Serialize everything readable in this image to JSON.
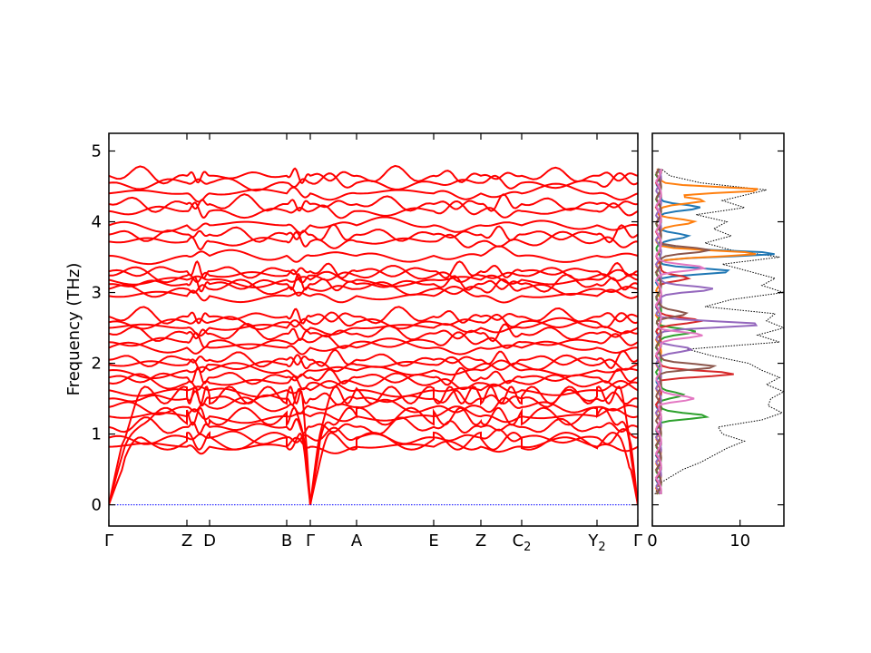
{
  "chart_data": [
    {
      "type": "line",
      "title": "",
      "xlabel": "",
      "ylabel": "Frequency (THz)",
      "ylim": [
        -0.3,
        5.25
      ],
      "yticks": [
        "0",
        "1",
        "2",
        "3",
        "4",
        "5"
      ],
      "ytick_values": [
        0,
        1,
        2,
        3,
        4,
        5
      ],
      "xticks": [
        {
          "label": "Γ",
          "sub": ""
        },
        {
          "label": "Z",
          "sub": ""
        },
        {
          "label": "D",
          "sub": ""
        },
        {
          "label": "B",
          "sub": ""
        },
        {
          "label": "Γ",
          "sub": ""
        },
        {
          "label": "A",
          "sub": ""
        },
        {
          "label": "E",
          "sub": ""
        },
        {
          "label": "Z",
          "sub": ""
        },
        {
          "label": "C",
          "sub": "2"
        },
        {
          "label": "Y",
          "sub": "2"
        },
        {
          "label": "Γ",
          "sub": ""
        }
      ],
      "band_color": "#ff0000",
      "zero_line_color": "#0000ff",
      "series_description": "phonon dispersion bands",
      "acoustic_max": [
        0.9,
        1.25,
        1.55
      ],
      "optical_levels": [
        0.82,
        0.95,
        1.1,
        1.25,
        1.38,
        1.5,
        1.62,
        1.72,
        1.8,
        1.9,
        1.98,
        2.05,
        2.22,
        2.3,
        2.42,
        2.5,
        2.58,
        2.66,
        2.95,
        3.05,
        3.12,
        3.18,
        3.24,
        3.3,
        3.52,
        3.72,
        3.82,
        3.95,
        4.15,
        4.25,
        4.4,
        4.55,
        4.65
      ]
    },
    {
      "type": "line",
      "title": "",
      "xlabel": "",
      "ylabel": "",
      "xlim": [
        0,
        15
      ],
      "xticks": [
        "0",
        "10"
      ],
      "xtick_values": [
        0,
        10
      ],
      "ylim": [
        -0.3,
        5.25
      ],
      "total_dos_color": "#000000",
      "series": [
        {
          "name": "",
          "color": "#1f77b4"
        },
        {
          "name": "",
          "color": "#ff7f0e"
        },
        {
          "name": "",
          "color": "#2ca02c"
        },
        {
          "name": "",
          "color": "#d62728"
        },
        {
          "name": "",
          "color": "#9467bd"
        },
        {
          "name": "",
          "color": "#8c564b"
        },
        {
          "name": "",
          "color": "#e377c2"
        }
      ],
      "total_dos": [
        [
          0.15,
          0.3
        ],
        [
          0.3,
          0.8
        ],
        [
          0.5,
          3.5
        ],
        [
          0.6,
          5.5
        ],
        [
          0.7,
          7.0
        ],
        [
          0.8,
          8.5
        ],
        [
          0.9,
          10.5
        ],
        [
          1.0,
          8.0
        ],
        [
          1.1,
          7.5
        ],
        [
          1.2,
          12.5
        ],
        [
          1.3,
          14.8
        ],
        [
          1.4,
          13.2
        ],
        [
          1.5,
          13.5
        ],
        [
          1.6,
          15.0
        ],
        [
          1.7,
          13.0
        ],
        [
          1.8,
          14.5
        ],
        [
          1.9,
          12.5
        ],
        [
          2.0,
          11.0
        ],
        [
          2.1,
          7.0
        ],
        [
          2.2,
          4.0
        ],
        [
          2.3,
          14.5
        ],
        [
          2.4,
          12.0
        ],
        [
          2.5,
          15.0
        ],
        [
          2.6,
          13.0
        ],
        [
          2.7,
          14.0
        ],
        [
          2.8,
          6.0
        ],
        [
          2.9,
          9.0
        ],
        [
          3.0,
          15.0
        ],
        [
          3.1,
          12.5
        ],
        [
          3.2,
          14.0
        ],
        [
          3.3,
          11.0
        ],
        [
          3.4,
          8.0
        ],
        [
          3.5,
          14.5
        ],
        [
          3.6,
          9.0
        ],
        [
          3.7,
          6.0
        ],
        [
          3.8,
          9.0
        ],
        [
          3.9,
          7.0
        ],
        [
          4.0,
          8.5
        ],
        [
          4.1,
          5.0
        ],
        [
          4.2,
          10.5
        ],
        [
          4.3,
          8.0
        ],
        [
          4.45,
          13.0
        ],
        [
          4.55,
          5.5
        ],
        [
          4.65,
          2.0
        ],
        [
          4.75,
          1.0
        ]
      ],
      "projected_peaks": [
        {
          "series": 0,
          "peaks": [
            [
              3.55,
              13.5
            ],
            [
              3.3,
              8.0
            ],
            [
              4.2,
              5.0
            ],
            [
              3.8,
              3.5
            ]
          ]
        },
        {
          "series": 1,
          "peaks": [
            [
              4.45,
              12.0
            ],
            [
              3.55,
              11.0
            ],
            [
              4.3,
              5.0
            ],
            [
              4.0,
              4.0
            ]
          ]
        },
        {
          "series": 2,
          "peaks": [
            [
              1.25,
              5.5
            ],
            [
              1.55,
              3.0
            ],
            [
              2.45,
              4.0
            ]
          ]
        },
        {
          "series": 3,
          "peaks": [
            [
              1.85,
              8.5
            ],
            [
              2.6,
              4.5
            ],
            [
              3.2,
              3.5
            ]
          ]
        },
        {
          "series": 4,
          "peaks": [
            [
              2.55,
              11.5
            ],
            [
              3.05,
              6.5
            ],
            [
              2.2,
              3.5
            ]
          ]
        },
        {
          "series": 5,
          "peaks": [
            [
              1.95,
              6.5
            ],
            [
              3.6,
              6.0
            ],
            [
              2.7,
              3.0
            ]
          ]
        },
        {
          "series": 6,
          "peaks": [
            [
              1.5,
              4.0
            ],
            [
              2.4,
              5.0
            ],
            [
              3.35,
              5.0
            ]
          ]
        }
      ]
    }
  ]
}
